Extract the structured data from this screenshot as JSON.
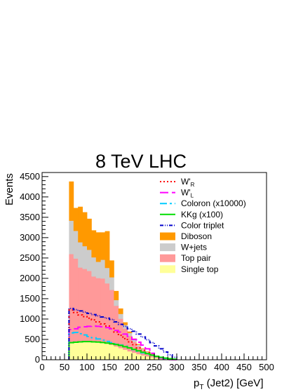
{
  "chart_data": {
    "type": "area",
    "title": "8 TeV LHC",
    "xlabel": "p_T (Jet2) [GeV]",
    "xlabel_parts": {
      "p": "p",
      "sub": "T",
      "rest": " (Jet2) [GeV]"
    },
    "ylabel": "Events",
    "xlim": [
      0,
      500
    ],
    "ylim": [
      0,
      4600
    ],
    "xticks": [
      0,
      50,
      100,
      150,
      200,
      250,
      300,
      350,
      400,
      450,
      500
    ],
    "yticks": [
      0,
      500,
      1000,
      1500,
      2000,
      2500,
      3000,
      3500,
      4000,
      4500
    ],
    "x_edges": [
      60,
      70,
      80,
      90,
      100,
      110,
      120,
      130,
      140,
      150,
      160,
      170,
      180,
      190,
      200,
      210,
      220,
      230,
      240,
      250,
      260,
      270,
      280,
      290,
      300
    ],
    "stack": [
      {
        "name": "Single top",
        "color": "#ffff99",
        "values": [
          420,
          440,
          450,
          455,
          455,
          450,
          440,
          420,
          400,
          370,
          330,
          290,
          250,
          210,
          175,
          140,
          110,
          85,
          65,
          48,
          35,
          25,
          17,
          10
        ]
      },
      {
        "name": "Top pair",
        "color": "#ff9999",
        "values": [
          2180,
          2050,
          1820,
          1780,
          1730,
          1600,
          1570,
          1580,
          1480,
          1350,
          1000,
          720,
          520,
          380,
          270,
          190,
          130,
          90,
          60,
          40,
          27,
          18,
          12,
          7
        ]
      },
      {
        "name": "W+jets",
        "color": "#cccccc",
        "values": [
          820,
          680,
          620,
          560,
          520,
          470,
          400,
          460,
          380,
          310,
          140,
          120,
          90,
          70,
          55,
          42,
          32,
          24,
          18,
          13,
          9,
          6,
          4,
          2
        ]
      },
      {
        "name": "Diboson",
        "color": "#ff9900",
        "values": [
          960,
          560,
          870,
          830,
          760,
          660,
          720,
          670,
          900,
          410,
          220,
          130,
          60,
          35,
          22,
          14,
          9,
          6,
          4,
          2,
          2,
          1,
          1,
          0
        ]
      }
    ],
    "overlays": [
      {
        "name": "W'_R",
        "label_main": "W'",
        "label_sub": "R",
        "color": "#ff0000",
        "dash": "2,3",
        "values": [
          1220,
          1160,
          1100,
          1060,
          1020,
          980,
          930,
          880,
          830,
          770,
          680,
          600,
          520,
          440,
          370,
          290,
          230,
          170,
          120,
          80,
          50,
          30,
          15,
          8
        ]
      },
      {
        "name": "W'_L",
        "label_main": "W'",
        "label_sub": "L",
        "color": "#ff00ff",
        "dash": "12,5",
        "values": [
          740,
          760,
          800,
          810,
          820,
          830,
          820,
          810,
          790,
          760,
          720,
          680,
          630,
          570,
          500,
          430,
          360,
          270,
          160,
          80,
          40,
          15,
          5,
          2
        ]
      },
      {
        "name": "Coloron (x10000)",
        "color": "#00ccff",
        "dash": "10,4,3,4",
        "values": [
          660,
          670,
          640,
          610,
          570,
          540,
          510,
          480,
          450,
          420,
          390,
          360,
          330,
          290,
          250,
          210,
          170,
          140,
          110,
          80,
          55,
          35,
          20,
          10
        ]
      },
      {
        "name": "KKg (x100)",
        "color": "#00dd00",
        "dash": "",
        "values": [
          420,
          430,
          440,
          445,
          445,
          440,
          435,
          425,
          410,
          395,
          375,
          350,
          320,
          290,
          255,
          220,
          185,
          150,
          115,
          85,
          60,
          40,
          25,
          12
        ]
      },
      {
        "name": "Color triplet",
        "color": "#0000cc",
        "dash": "5,2,1,2,1,2",
        "values": [
          1260,
          1230,
          1200,
          1170,
          1140,
          1110,
          1080,
          1050,
          1020,
          990,
          930,
          870,
          820,
          760,
          700,
          630,
          560,
          490,
          420,
          340,
          270,
          190,
          120,
          60
        ]
      }
    ],
    "legend_position": "top-right",
    "grid": false
  }
}
